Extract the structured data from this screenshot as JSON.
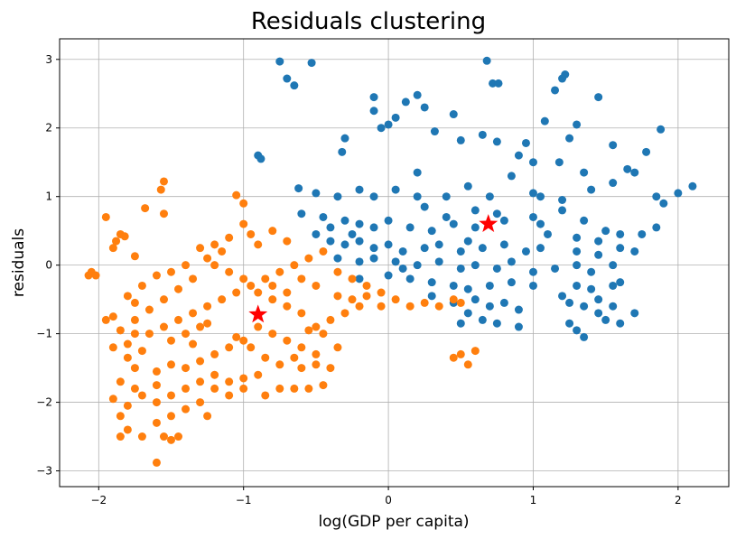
{
  "chart_data": {
    "type": "scatter",
    "title": "Residuals clustering",
    "xlabel": "log(GDP per capita)",
    "ylabel": "residuals",
    "xlim": [
      -2.27,
      2.35
    ],
    "ylim": [
      -3.23,
      3.3
    ],
    "xticks": [
      -2,
      -1,
      0,
      1,
      2
    ],
    "yticks": [
      -3,
      -2,
      -1,
      0,
      1,
      2,
      3
    ],
    "grid": true,
    "series": [
      {
        "color": "#1f77b4",
        "points": [
          [
            -0.75,
            2.97
          ],
          [
            -0.53,
            2.95
          ],
          [
            0.68,
            2.98
          ],
          [
            1.22,
            2.78
          ],
          [
            1.2,
            2.72
          ],
          [
            0.72,
            2.65
          ],
          [
            0.76,
            2.65
          ],
          [
            -0.65,
            2.62
          ],
          [
            -0.7,
            2.72
          ],
          [
            1.15,
            2.55
          ],
          [
            1.45,
            2.45
          ],
          [
            0.2,
            2.48
          ],
          [
            -0.1,
            2.45
          ],
          [
            0.12,
            2.38
          ],
          [
            -0.1,
            2.25
          ],
          [
            0.25,
            2.3
          ],
          [
            0.45,
            2.2
          ],
          [
            0.05,
            2.15
          ],
          [
            1.08,
            2.1
          ],
          [
            1.3,
            2.05
          ],
          [
            1.88,
            1.98
          ],
          [
            0.0,
            2.05
          ],
          [
            -0.05,
            2.0
          ],
          [
            0.32,
            1.95
          ],
          [
            -0.3,
            1.85
          ],
          [
            0.65,
            1.9
          ],
          [
            1.25,
            1.85
          ],
          [
            1.55,
            1.75
          ],
          [
            0.95,
            1.78
          ],
          [
            1.78,
            1.65
          ],
          [
            0.5,
            1.82
          ],
          [
            0.75,
            1.8
          ],
          [
            -0.32,
            1.65
          ],
          [
            1.18,
            1.5
          ],
          [
            1.65,
            1.4
          ],
          [
            -0.9,
            1.6
          ],
          [
            -0.88,
            1.55
          ],
          [
            0.9,
            1.6
          ],
          [
            1.0,
            1.5
          ],
          [
            1.35,
            1.35
          ],
          [
            1.7,
            1.35
          ],
          [
            0.85,
            1.3
          ],
          [
            0.2,
            1.35
          ],
          [
            -0.62,
            1.12
          ],
          [
            -0.5,
            1.05
          ],
          [
            -0.35,
            1.0
          ],
          [
            -0.2,
            1.1
          ],
          [
            -0.1,
            1.0
          ],
          [
            0.05,
            1.1
          ],
          [
            0.2,
            1.0
          ],
          [
            0.4,
            1.0
          ],
          [
            0.55,
            1.15
          ],
          [
            0.7,
            1.0
          ],
          [
            1.05,
            1.0
          ],
          [
            1.2,
            0.95
          ],
          [
            1.4,
            1.1
          ],
          [
            1.55,
            1.2
          ],
          [
            1.85,
            1.0
          ],
          [
            1.9,
            0.9
          ],
          [
            2.0,
            1.05
          ],
          [
            2.1,
            1.15
          ],
          [
            -0.6,
            0.75
          ],
          [
            -0.45,
            0.7
          ],
          [
            -0.3,
            0.65
          ],
          [
            -0.2,
            0.6
          ],
          [
            -0.1,
            0.55
          ],
          [
            0.0,
            0.65
          ],
          [
            0.15,
            0.55
          ],
          [
            0.3,
            0.5
          ],
          [
            0.45,
            0.6
          ],
          [
            0.6,
            0.55
          ],
          [
            0.8,
            0.65
          ],
          [
            1.0,
            0.7
          ],
          [
            1.05,
            0.6
          ],
          [
            1.1,
            0.45
          ],
          [
            1.3,
            0.4
          ],
          [
            1.45,
            0.35
          ],
          [
            1.6,
            0.45
          ],
          [
            1.75,
            0.45
          ],
          [
            1.85,
            0.55
          ],
          [
            -0.5,
            0.45
          ],
          [
            -0.4,
            0.35
          ],
          [
            -0.3,
            0.3
          ],
          [
            -0.2,
            0.35
          ],
          [
            -0.1,
            0.25
          ],
          [
            0.0,
            0.3
          ],
          [
            0.1,
            0.2
          ],
          [
            0.25,
            0.25
          ],
          [
            0.35,
            0.3
          ],
          [
            0.5,
            0.2
          ],
          [
            0.65,
            0.25
          ],
          [
            0.8,
            0.3
          ],
          [
            0.95,
            0.2
          ],
          [
            1.05,
            0.25
          ],
          [
            1.3,
            0.2
          ],
          [
            1.45,
            0.15
          ],
          [
            1.6,
            0.25
          ],
          [
            1.7,
            0.2
          ],
          [
            -0.35,
            0.1
          ],
          [
            -0.2,
            0.05
          ],
          [
            -0.1,
            0.1
          ],
          [
            0.05,
            0.05
          ],
          [
            0.2,
            0.0
          ],
          [
            0.35,
            0.05
          ],
          [
            0.5,
            -0.05
          ],
          [
            0.6,
            0.0
          ],
          [
            0.75,
            -0.05
          ],
          [
            0.85,
            0.05
          ],
          [
            1.0,
            -0.1
          ],
          [
            1.15,
            -0.05
          ],
          [
            1.3,
            0.0
          ],
          [
            1.4,
            -0.1
          ],
          [
            1.55,
            0.0
          ],
          [
            -0.2,
            -0.2
          ],
          [
            0.0,
            -0.15
          ],
          [
            0.15,
            -0.2
          ],
          [
            0.3,
            -0.25
          ],
          [
            0.45,
            -0.3
          ],
          [
            0.55,
            -0.35
          ],
          [
            0.7,
            -0.3
          ],
          [
            0.85,
            -0.25
          ],
          [
            1.0,
            -0.3
          ],
          [
            1.3,
            -0.3
          ],
          [
            1.4,
            -0.35
          ],
          [
            1.55,
            -0.3
          ],
          [
            1.6,
            -0.25
          ],
          [
            0.3,
            -0.45
          ],
          [
            0.45,
            -0.55
          ],
          [
            0.6,
            -0.5
          ],
          [
            0.7,
            -0.6
          ],
          [
            0.8,
            -0.55
          ],
          [
            0.9,
            -0.65
          ],
          [
            1.25,
            -0.55
          ],
          [
            1.35,
            -0.6
          ],
          [
            1.45,
            -0.7
          ],
          [
            1.55,
            -0.6
          ],
          [
            1.7,
            -0.7
          ],
          [
            1.5,
            -0.8
          ],
          [
            0.55,
            -0.7
          ],
          [
            0.65,
            -0.8
          ],
          [
            0.75,
            -0.85
          ],
          [
            0.9,
            -0.9
          ],
          [
            1.25,
            -0.85
          ],
          [
            1.3,
            -0.95
          ],
          [
            1.35,
            -1.05
          ],
          [
            1.6,
            -0.85
          ],
          [
            0.5,
            -0.85
          ],
          [
            -0.4,
            0.55
          ],
          [
            -0.25,
            0.45
          ],
          [
            0.4,
            0.7
          ],
          [
            0.6,
            0.8
          ],
          [
            0.75,
            0.75
          ],
          [
            0.25,
            0.85
          ],
          [
            1.2,
            0.8
          ],
          [
            1.35,
            0.65
          ],
          [
            1.5,
            0.5
          ],
          [
            1.0,
            1.05
          ],
          [
            0.1,
            -0.05
          ],
          [
            0.55,
            0.35
          ],
          [
            1.2,
            -0.45
          ],
          [
            1.45,
            -0.5
          ]
        ]
      },
      {
        "color": "#ff7f0e",
        "points": [
          [
            -2.05,
            -0.1
          ],
          [
            -2.07,
            -0.15
          ],
          [
            -2.02,
            -0.15
          ],
          [
            -1.95,
            0.7
          ],
          [
            -1.9,
            0.25
          ],
          [
            -1.88,
            0.35
          ],
          [
            -1.85,
            0.45
          ],
          [
            -1.82,
            0.42
          ],
          [
            -1.75,
            0.13
          ],
          [
            -1.55,
            1.22
          ],
          [
            -1.57,
            1.1
          ],
          [
            -1.55,
            0.75
          ],
          [
            -1.68,
            0.83
          ],
          [
            -1.05,
            1.02
          ],
          [
            -1.0,
            0.9
          ],
          [
            -0.95,
            0.45
          ],
          [
            -1.1,
            0.4
          ],
          [
            -1.2,
            0.3
          ],
          [
            -1.3,
            0.25
          ],
          [
            -1.4,
            0.0
          ],
          [
            -1.5,
            -0.1
          ],
          [
            -1.6,
            -0.15
          ],
          [
            -1.7,
            -0.3
          ],
          [
            -1.8,
            -0.45
          ],
          [
            -1.75,
            -0.55
          ],
          [
            -1.9,
            -0.75
          ],
          [
            -1.95,
            -0.8
          ],
          [
            -1.85,
            -0.95
          ],
          [
            -1.75,
            -1.0
          ],
          [
            -1.7,
            -1.25
          ],
          [
            -1.8,
            -1.35
          ],
          [
            -1.75,
            -1.5
          ],
          [
            -1.85,
            -1.7
          ],
          [
            -1.75,
            -1.8
          ],
          [
            -1.9,
            -1.95
          ],
          [
            -1.8,
            -2.05
          ],
          [
            -1.85,
            -2.2
          ],
          [
            -1.8,
            -2.4
          ],
          [
            -1.85,
            -2.5
          ],
          [
            -1.7,
            -2.5
          ],
          [
            -1.6,
            -2.3
          ],
          [
            -1.55,
            -2.5
          ],
          [
            -1.5,
            -2.55
          ],
          [
            -1.45,
            -2.5
          ],
          [
            -1.6,
            -2.88
          ],
          [
            -1.6,
            -2.0
          ],
          [
            -1.5,
            -1.9
          ],
          [
            -1.4,
            -1.8
          ],
          [
            -1.3,
            -1.7
          ],
          [
            -1.2,
            -1.8
          ],
          [
            -1.1,
            -1.7
          ],
          [
            -1.0,
            -1.65
          ],
          [
            -0.9,
            -1.6
          ],
          [
            -0.85,
            -1.9
          ],
          [
            -0.75,
            -1.8
          ],
          [
            -0.65,
            -1.8
          ],
          [
            -0.55,
            -1.8
          ],
          [
            -0.45,
            -1.75
          ],
          [
            -0.4,
            -1.5
          ],
          [
            -0.5,
            -1.3
          ],
          [
            -0.6,
            -1.2
          ],
          [
            -0.7,
            -1.1
          ],
          [
            -0.8,
            -1.0
          ],
          [
            -0.9,
            -0.9
          ],
          [
            -1.0,
            -1.1
          ],
          [
            -1.1,
            -1.2
          ],
          [
            -1.2,
            -1.3
          ],
          [
            -1.3,
            -1.4
          ],
          [
            -1.4,
            -1.5
          ],
          [
            -1.5,
            -1.45
          ],
          [
            -1.6,
            -1.55
          ],
          [
            -1.65,
            -1.0
          ],
          [
            -1.55,
            -0.9
          ],
          [
            -1.45,
            -0.8
          ],
          [
            -1.35,
            -0.7
          ],
          [
            -1.25,
            -0.6
          ],
          [
            -1.15,
            -0.5
          ],
          [
            -1.05,
            -0.4
          ],
          [
            -0.95,
            -0.3
          ],
          [
            -0.85,
            -0.2
          ],
          [
            -0.75,
            -0.1
          ],
          [
            -0.65,
            0.0
          ],
          [
            -0.55,
            0.1
          ],
          [
            -0.45,
            0.2
          ],
          [
            -0.7,
            0.35
          ],
          [
            -0.8,
            0.5
          ],
          [
            -0.9,
            0.3
          ],
          [
            -1.0,
            0.6
          ],
          [
            -1.15,
            0.2
          ],
          [
            -1.25,
            0.1
          ],
          [
            -1.35,
            -0.2
          ],
          [
            -1.45,
            -0.35
          ],
          [
            -1.55,
            -0.5
          ],
          [
            -1.65,
            -0.65
          ],
          [
            -1.75,
            -0.8
          ],
          [
            -0.35,
            -0.1
          ],
          [
            -0.25,
            -0.2
          ],
          [
            -0.15,
            -0.3
          ],
          [
            -0.05,
            -0.4
          ],
          [
            0.05,
            -0.5
          ],
          [
            0.15,
            -0.6
          ],
          [
            0.25,
            -0.55
          ],
          [
            0.35,
            -0.6
          ],
          [
            0.45,
            -0.5
          ],
          [
            0.5,
            -0.55
          ],
          [
            -0.2,
            -0.6
          ],
          [
            -0.3,
            -0.7
          ],
          [
            -0.4,
            -0.8
          ],
          [
            -0.5,
            -0.9
          ],
          [
            -0.6,
            -0.7
          ],
          [
            -0.7,
            -0.6
          ],
          [
            -0.8,
            -0.5
          ],
          [
            -0.9,
            -0.4
          ],
          [
            -1.0,
            -0.2
          ],
          [
            -1.1,
            -0.1
          ],
          [
            -1.2,
            0.0
          ],
          [
            -1.3,
            -0.9
          ],
          [
            -1.4,
            -1.0
          ],
          [
            -1.5,
            -1.1
          ],
          [
            -1.2,
            -1.6
          ],
          [
            -1.1,
            -1.9
          ],
          [
            -1.3,
            -2.0
          ],
          [
            -1.4,
            -2.1
          ],
          [
            -1.5,
            -2.2
          ],
          [
            -1.25,
            -2.2
          ],
          [
            -1.0,
            -1.8
          ],
          [
            -0.6,
            -1.5
          ],
          [
            -0.5,
            -1.45
          ],
          [
            -0.35,
            -1.2
          ],
          [
            -0.45,
            -1.0
          ],
          [
            -0.55,
            -0.95
          ],
          [
            0.5,
            -1.3
          ],
          [
            0.55,
            -1.45
          ],
          [
            0.45,
            -1.35
          ],
          [
            0.6,
            -1.25
          ],
          [
            -1.05,
            -1.05
          ],
          [
            -0.95,
            -1.2
          ],
          [
            -0.85,
            -1.35
          ],
          [
            -0.75,
            -1.45
          ],
          [
            -0.65,
            -1.35
          ],
          [
            -0.35,
            -0.45
          ],
          [
            -0.25,
            -0.5
          ],
          [
            -0.15,
            -0.45
          ],
          [
            -0.05,
            -0.6
          ],
          [
            -0.5,
            -0.3
          ],
          [
            -0.6,
            -0.2
          ],
          [
            -0.7,
            -0.4
          ],
          [
            -0.8,
            -0.3
          ],
          [
            -1.6,
            -1.75
          ],
          [
            -1.7,
            -1.9
          ],
          [
            -1.9,
            -1.2
          ],
          [
            -1.8,
            -1.15
          ],
          [
            -1.35,
            -1.15
          ],
          [
            -1.25,
            -0.85
          ]
        ]
      }
    ],
    "centroids": {
      "color": "#ff0000",
      "points": [
        [
          -0.9,
          -0.72
        ],
        [
          0.69,
          0.6
        ]
      ]
    }
  }
}
